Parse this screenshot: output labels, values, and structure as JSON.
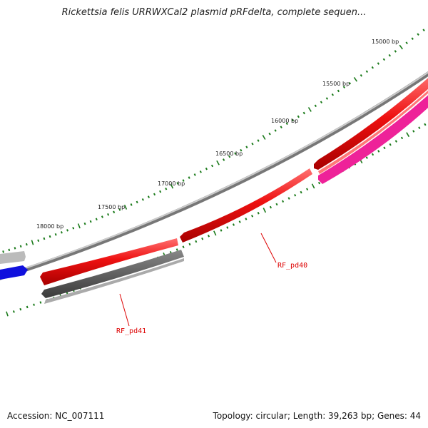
{
  "title": "Rickettsia felis URRWXCal2 plasmid pRFdelta, complete sequen...",
  "footer": {
    "accession": "Accession: NC_007111",
    "summary": "Topology: circular; Length: 39,263 bp; Genes: 44"
  },
  "colors": {
    "backbone": "#8c8c8c",
    "tick": "#1a7a1a",
    "forward_gene": "#ee1111",
    "reverse_gene": "#555555",
    "pink_gene": "#ee2299",
    "blue_gene": "#1010dd",
    "light_gray_gene": "#bbbbbb",
    "label_line": "#dd0000"
  },
  "ticks": [
    {
      "label": "15000 bp"
    },
    {
      "label": "15500 bp"
    },
    {
      "label": "16000 bp"
    },
    {
      "label": "16500 bp"
    },
    {
      "label": "17000 bp"
    },
    {
      "label": "17500 bp"
    },
    {
      "label": "18000 bp"
    }
  ],
  "genes": [
    {
      "name": "RF_pd40"
    },
    {
      "name": "RF_pd41"
    }
  ]
}
